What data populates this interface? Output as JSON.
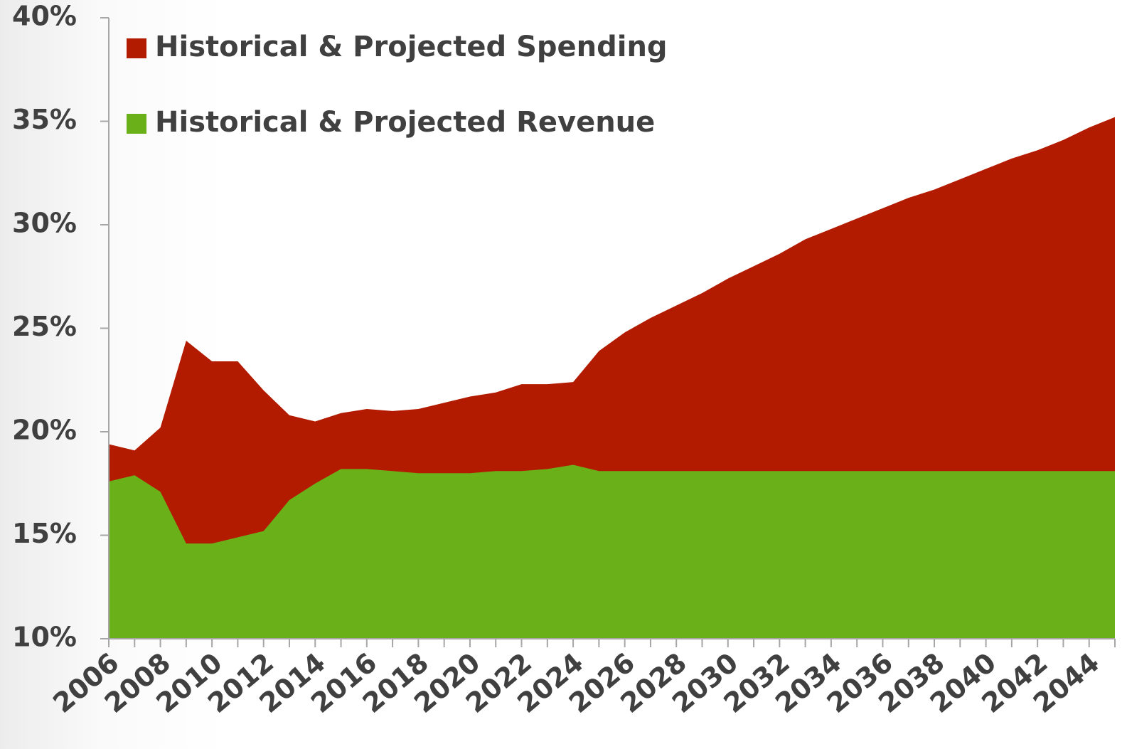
{
  "chart_data": {
    "type": "area",
    "categories": [
      "2006",
      null,
      "2008",
      null,
      "2010",
      null,
      "2012",
      null,
      "2014",
      null,
      "2016",
      null,
      "2018",
      null,
      "2020",
      null,
      "2022",
      null,
      "2024",
      null,
      "2026",
      null,
      "2028",
      null,
      "2030",
      null,
      "2032",
      null,
      "2034",
      null,
      "2036",
      null,
      "2038",
      null,
      "2040",
      null,
      "2042",
      null,
      "2044",
      null
    ],
    "series": [
      {
        "name": "Historical & Projected Spending",
        "color": "#b31b00",
        "values": [
          19.4,
          19.1,
          20.2,
          24.4,
          23.4,
          23.4,
          22.0,
          20.8,
          20.5,
          20.9,
          21.1,
          21.0,
          21.1,
          21.4,
          21.7,
          21.9,
          22.3,
          22.3,
          22.4,
          23.9,
          24.8,
          25.5,
          26.1,
          26.7,
          27.4,
          28.0,
          28.6,
          29.3,
          29.8,
          30.3,
          30.8,
          31.3,
          31.7,
          32.2,
          32.7,
          33.2,
          33.6,
          34.1,
          34.7,
          35.2
        ]
      },
      {
        "name": "Historical & Projected Revenue",
        "color": "#6ab018",
        "values": [
          17.6,
          17.9,
          17.1,
          14.6,
          14.6,
          14.9,
          15.2,
          16.7,
          17.5,
          18.2,
          18.2,
          18.1,
          18.0,
          18.0,
          18.0,
          18.1,
          18.1,
          18.2,
          18.4,
          18.1,
          18.1,
          18.1,
          18.1,
          18.1,
          18.1,
          18.1,
          18.1,
          18.1,
          18.1,
          18.1,
          18.1,
          18.1,
          18.1,
          18.1,
          18.1,
          18.1,
          18.1,
          18.1,
          18.1,
          18.1
        ]
      }
    ],
    "ylim": [
      10,
      40
    ],
    "yticks": [
      {
        "value": 10,
        "label": "10%"
      },
      {
        "value": 15,
        "label": "15%"
      },
      {
        "value": 20,
        "label": "20%"
      },
      {
        "value": 25,
        "label": "25%"
      },
      {
        "value": 30,
        "label": "30%"
      },
      {
        "value": 35,
        "label": "35%"
      },
      {
        "value": 40,
        "label": "40%"
      }
    ],
    "legend": "top-left",
    "grid": false
  }
}
